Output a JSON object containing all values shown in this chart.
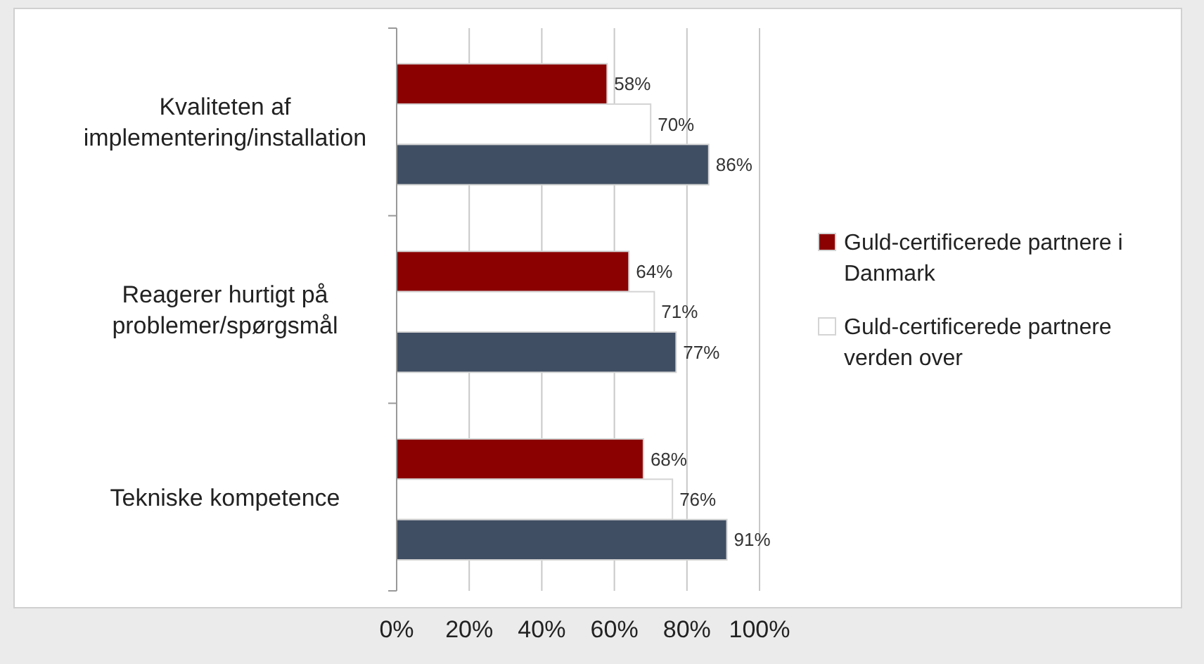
{
  "chart_data": {
    "type": "bar",
    "orientation": "horizontal",
    "categories": [
      "Kvaliteten af implementering/installation",
      "Reagerer hurtigt på problemer/spørgsmål",
      "Tekniske kompetence"
    ],
    "series": [
      {
        "name": "Guld-certificerede partnere i Danmark",
        "color": "#8b0000",
        "values": [
          58,
          64,
          68
        ],
        "value_labels": [
          "58%",
          "64%",
          "68%"
        ]
      },
      {
        "name": "Guld-certificerede partnere verden over",
        "color": "#ffffff",
        "values": [
          70,
          71,
          76
        ],
        "value_labels": [
          "70%",
          "71%",
          "76%"
        ]
      },
      {
        "color": "#404e63",
        "values": [
          86,
          77,
          91
        ],
        "value_labels": [
          "86%",
          "77%",
          "91%"
        ]
      }
    ],
    "xlim": [
      0,
      100
    ],
    "xticks": [
      {
        "value": 0,
        "label": "0%"
      },
      {
        "value": 20,
        "label": "20%"
      },
      {
        "value": 40,
        "label": "40%"
      },
      {
        "value": 60,
        "label": "60%"
      },
      {
        "value": 80,
        "label": "80%"
      },
      {
        "value": 100,
        "label": "100%"
      }
    ],
    "grid": "x",
    "legend": "right"
  }
}
